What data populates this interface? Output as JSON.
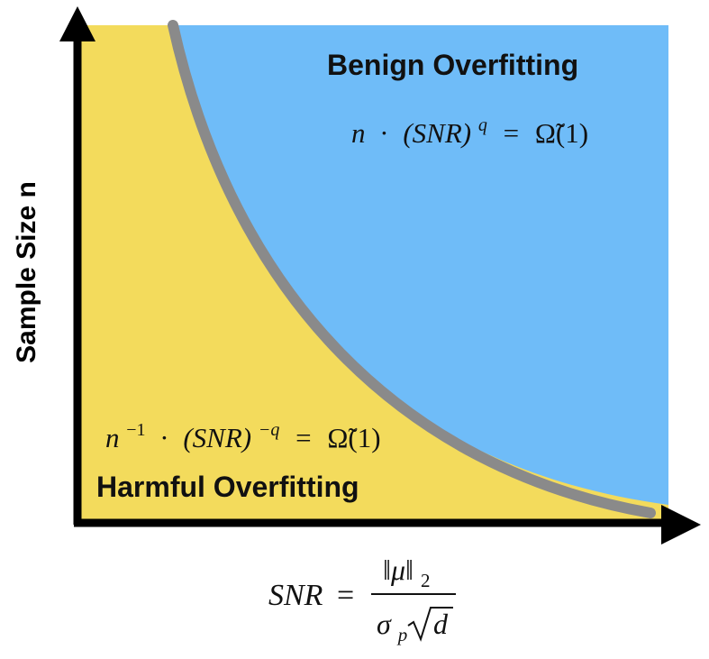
{
  "colors": {
    "benign_region": "#6fbcf8",
    "harmful_region": "#f3db5c",
    "boundary": "#8a8a8a",
    "axis": "#000000"
  },
  "y_axis": {
    "label": "Sample Size n"
  },
  "regions": {
    "benign": {
      "title": "Benign Overfitting",
      "condition": {
        "n": "n",
        "dot": "·",
        "snr": "(SNR)",
        "exp": "q",
        "eq": "=",
        "omega": "Ω̃(1)"
      }
    },
    "harmful": {
      "title": "Harmful Overfitting",
      "condition": {
        "n": "n",
        "n_exp": "−1",
        "dot": "·",
        "snr": "(SNR)",
        "exp": "−q",
        "eq": "=",
        "omega": "Ω̃(1)"
      }
    }
  },
  "snr_definition": {
    "lhs": "SNR",
    "eq": "=",
    "numerator": "‖μ‖",
    "numerator_sub": "2",
    "denominator_sigma": "σ",
    "denominator_sub": "p",
    "denominator_d": "d"
  }
}
